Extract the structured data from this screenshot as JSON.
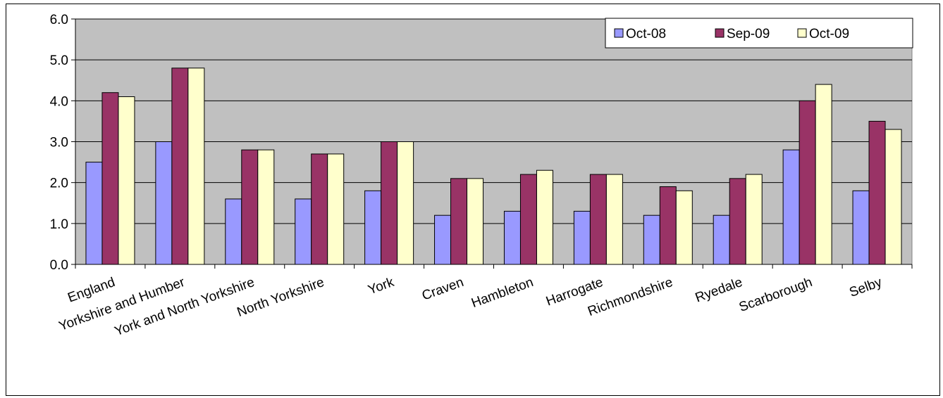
{
  "chart_data": {
    "type": "bar",
    "title": "",
    "xlabel": "",
    "ylabel": "",
    "ylim": [
      0,
      6
    ],
    "yticks": [
      "0.0",
      "1.0",
      "2.0",
      "3.0",
      "4.0",
      "5.0",
      "6.0"
    ],
    "grid": true,
    "legend_position": "top-right",
    "categories": [
      "England",
      "Yorkshire and Humber",
      "York and North Yorkshire",
      "North Yorkshire",
      "York",
      "Craven",
      "Hambleton",
      "Harrogate",
      "Richmondshire",
      "Ryedale",
      "Scarborough",
      "Selby"
    ],
    "series": [
      {
        "name": "Oct-08",
        "color": "#9999ff",
        "values": [
          2.5,
          3.0,
          1.6,
          1.6,
          1.8,
          1.2,
          1.3,
          1.3,
          1.2,
          1.2,
          2.8,
          1.8
        ]
      },
      {
        "name": "Sep-09",
        "color": "#993366",
        "values": [
          4.2,
          4.8,
          2.8,
          2.7,
          3.0,
          2.1,
          2.2,
          2.2,
          1.9,
          2.1,
          4.0,
          3.5
        ]
      },
      {
        "name": "Oct-09",
        "color": "#ffffcc",
        "values": [
          4.1,
          4.8,
          2.8,
          2.7,
          3.0,
          2.1,
          2.3,
          2.2,
          1.8,
          2.2,
          4.4,
          3.3
        ]
      }
    ],
    "plot_background": "#c0c0c0"
  }
}
